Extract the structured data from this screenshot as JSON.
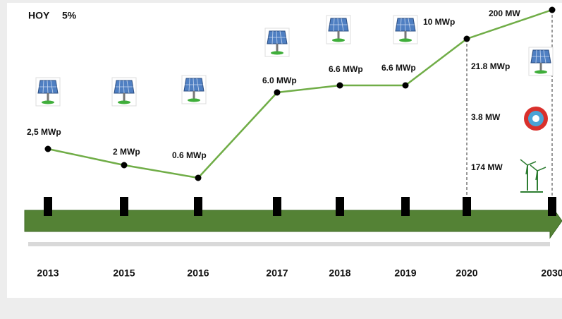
{
  "header": {
    "title": "HOY",
    "share": "5%"
  },
  "timeline": {
    "years": [
      "2013",
      "2015",
      "2016",
      "2017",
      "2018",
      "2019",
      "2020",
      "2030"
    ],
    "points": [
      "2,5 MWp",
      "2 MWp",
      "0.6 MWp",
      "6.0 MWp",
      "6.6 MWp",
      "6.6 MWp",
      "10 MWp",
      "200 MW"
    ]
  },
  "breakdown": [
    "21.8 MWp",
    "3.8 MW",
    "174 MW"
  ]
}
